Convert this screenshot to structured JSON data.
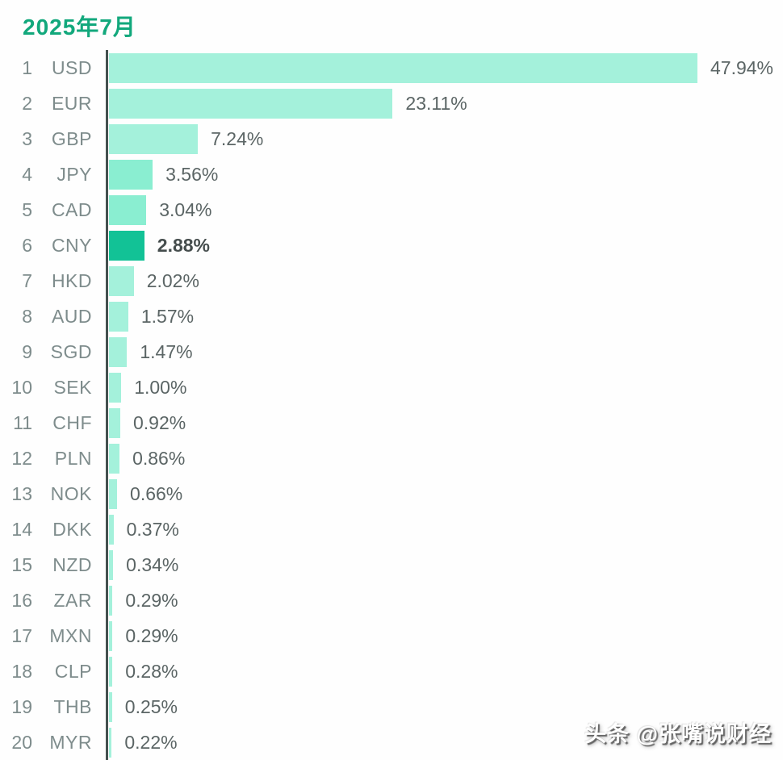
{
  "header": {
    "title": "2025年7月",
    "title_color": "#12a87c"
  },
  "watermark": {
    "text": "头条 @张嘴说财经"
  },
  "axis": {
    "color": "#44514f"
  },
  "colors": {
    "bar_default": "#a4f1db",
    "bar_deep": "#8aeed1",
    "bar_highlight": "#12c296",
    "label_text": "#7e8c8c",
    "value_text": "#5b6565",
    "value_emphasis_text": "#454d4d"
  },
  "rows": [
    {
      "rank": "1",
      "code": "USD",
      "label": "47.94%",
      "value": 47.94,
      "color_key": "bar_default",
      "emphasis": false
    },
    {
      "rank": "2",
      "code": "EUR",
      "label": "23.11%",
      "value": 23.11,
      "color_key": "bar_default",
      "emphasis": false
    },
    {
      "rank": "3",
      "code": "GBP",
      "label": "7.24%",
      "value": 7.24,
      "color_key": "bar_default",
      "emphasis": false
    },
    {
      "rank": "4",
      "code": "JPY",
      "label": "3.56%",
      "value": 3.56,
      "color_key": "bar_deep",
      "emphasis": false
    },
    {
      "rank": "5",
      "code": "CAD",
      "label": "3.04%",
      "value": 3.04,
      "color_key": "bar_deep",
      "emphasis": false
    },
    {
      "rank": "6",
      "code": "CNY",
      "label": "2.88%",
      "value": 2.88,
      "color_key": "bar_highlight",
      "emphasis": true
    },
    {
      "rank": "7",
      "code": "HKD",
      "label": "2.02%",
      "value": 2.02,
      "color_key": "bar_default",
      "emphasis": false
    },
    {
      "rank": "8",
      "code": "AUD",
      "label": "1.57%",
      "value": 1.57,
      "color_key": "bar_default",
      "emphasis": false
    },
    {
      "rank": "9",
      "code": "SGD",
      "label": "1.47%",
      "value": 1.47,
      "color_key": "bar_default",
      "emphasis": false
    },
    {
      "rank": "10",
      "code": "SEK",
      "label": "1.00%",
      "value": 1.0,
      "color_key": "bar_default",
      "emphasis": false
    },
    {
      "rank": "11",
      "code": "CHF",
      "label": "0.92%",
      "value": 0.92,
      "color_key": "bar_default",
      "emphasis": false
    },
    {
      "rank": "12",
      "code": "PLN",
      "label": "0.86%",
      "value": 0.86,
      "color_key": "bar_default",
      "emphasis": false
    },
    {
      "rank": "13",
      "code": "NOK",
      "label": "0.66%",
      "value": 0.66,
      "color_key": "bar_default",
      "emphasis": false
    },
    {
      "rank": "14",
      "code": "DKK",
      "label": "0.37%",
      "value": 0.37,
      "color_key": "bar_default",
      "emphasis": false
    },
    {
      "rank": "15",
      "code": "NZD",
      "label": "0.34%",
      "value": 0.34,
      "color_key": "bar_default",
      "emphasis": false
    },
    {
      "rank": "16",
      "code": "ZAR",
      "label": "0.29%",
      "value": 0.29,
      "color_key": "bar_default",
      "emphasis": false
    },
    {
      "rank": "17",
      "code": "MXN",
      "label": "0.29%",
      "value": 0.29,
      "color_key": "bar_default",
      "emphasis": false
    },
    {
      "rank": "18",
      "code": "CLP",
      "label": "0.28%",
      "value": 0.28,
      "color_key": "bar_default",
      "emphasis": false
    },
    {
      "rank": "19",
      "code": "THB",
      "label": "0.25%",
      "value": 0.25,
      "color_key": "bar_default",
      "emphasis": false
    },
    {
      "rank": "20",
      "code": "MYR",
      "label": "0.22%",
      "value": 0.22,
      "color_key": "bar_default",
      "emphasis": false
    }
  ],
  "chart_data": {
    "type": "bar",
    "orientation": "horizontal",
    "title": "2025年7月",
    "categories": [
      "USD",
      "EUR",
      "GBP",
      "JPY",
      "CAD",
      "CNY",
      "HKD",
      "AUD",
      "SGD",
      "SEK",
      "CHF",
      "PLN",
      "NOK",
      "DKK",
      "NZD",
      "ZAR",
      "MXN",
      "CLP",
      "THB",
      "MYR"
    ],
    "values": [
      47.94,
      23.11,
      7.24,
      3.56,
      3.04,
      2.88,
      2.02,
      1.57,
      1.47,
      1.0,
      0.92,
      0.86,
      0.66,
      0.37,
      0.34,
      0.29,
      0.29,
      0.28,
      0.25,
      0.22
    ],
    "value_labels": [
      "47.94%",
      "23.11%",
      "7.24%",
      "3.56%",
      "3.04%",
      "2.88%",
      "2.02%",
      "1.57%",
      "1.47%",
      "1.00%",
      "0.92%",
      "0.86%",
      "0.66%",
      "0.37%",
      "0.34%",
      "0.29%",
      "0.29%",
      "0.28%",
      "0.25%",
      "0.22%"
    ],
    "ranks": [
      1,
      2,
      3,
      4,
      5,
      6,
      7,
      8,
      9,
      10,
      11,
      12,
      13,
      14,
      15,
      16,
      17,
      18,
      19,
      20
    ],
    "highlight_category": "CNY",
    "xlabel": "",
    "ylabel": "",
    "xlim": [
      0,
      50
    ],
    "grid": false,
    "legend": false,
    "data_labels": "outside-end"
  }
}
